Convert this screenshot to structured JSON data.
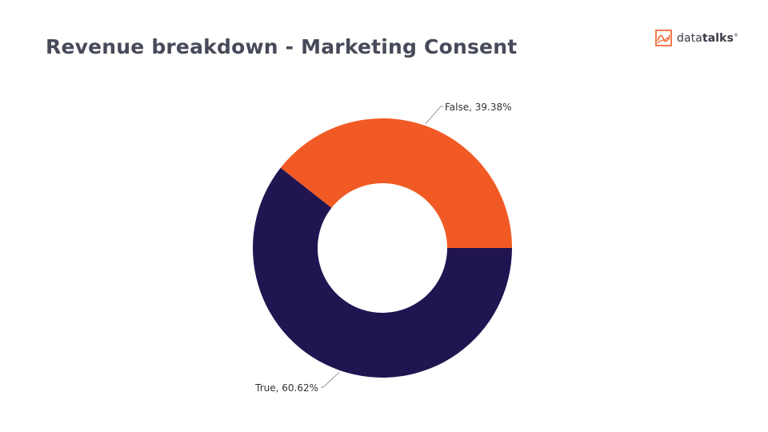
{
  "header": {
    "title": "Revenue breakdown - Marketing Consent"
  },
  "logo": {
    "text_part1": "data",
    "text_part2": "talks",
    "trademark": "®",
    "color": "#f15a24"
  },
  "chart_data": {
    "type": "pie",
    "donut": true,
    "title": "Revenue breakdown - Marketing Consent",
    "categories": [
      "False",
      "True"
    ],
    "values": [
      39.38,
      60.62
    ],
    "colors": [
      "#f15a24",
      "#211551"
    ],
    "labels": [
      "False, 39.38%",
      "True, 60.62%"
    ],
    "start_angle_deg": 0,
    "direction": "counterclockwise"
  }
}
